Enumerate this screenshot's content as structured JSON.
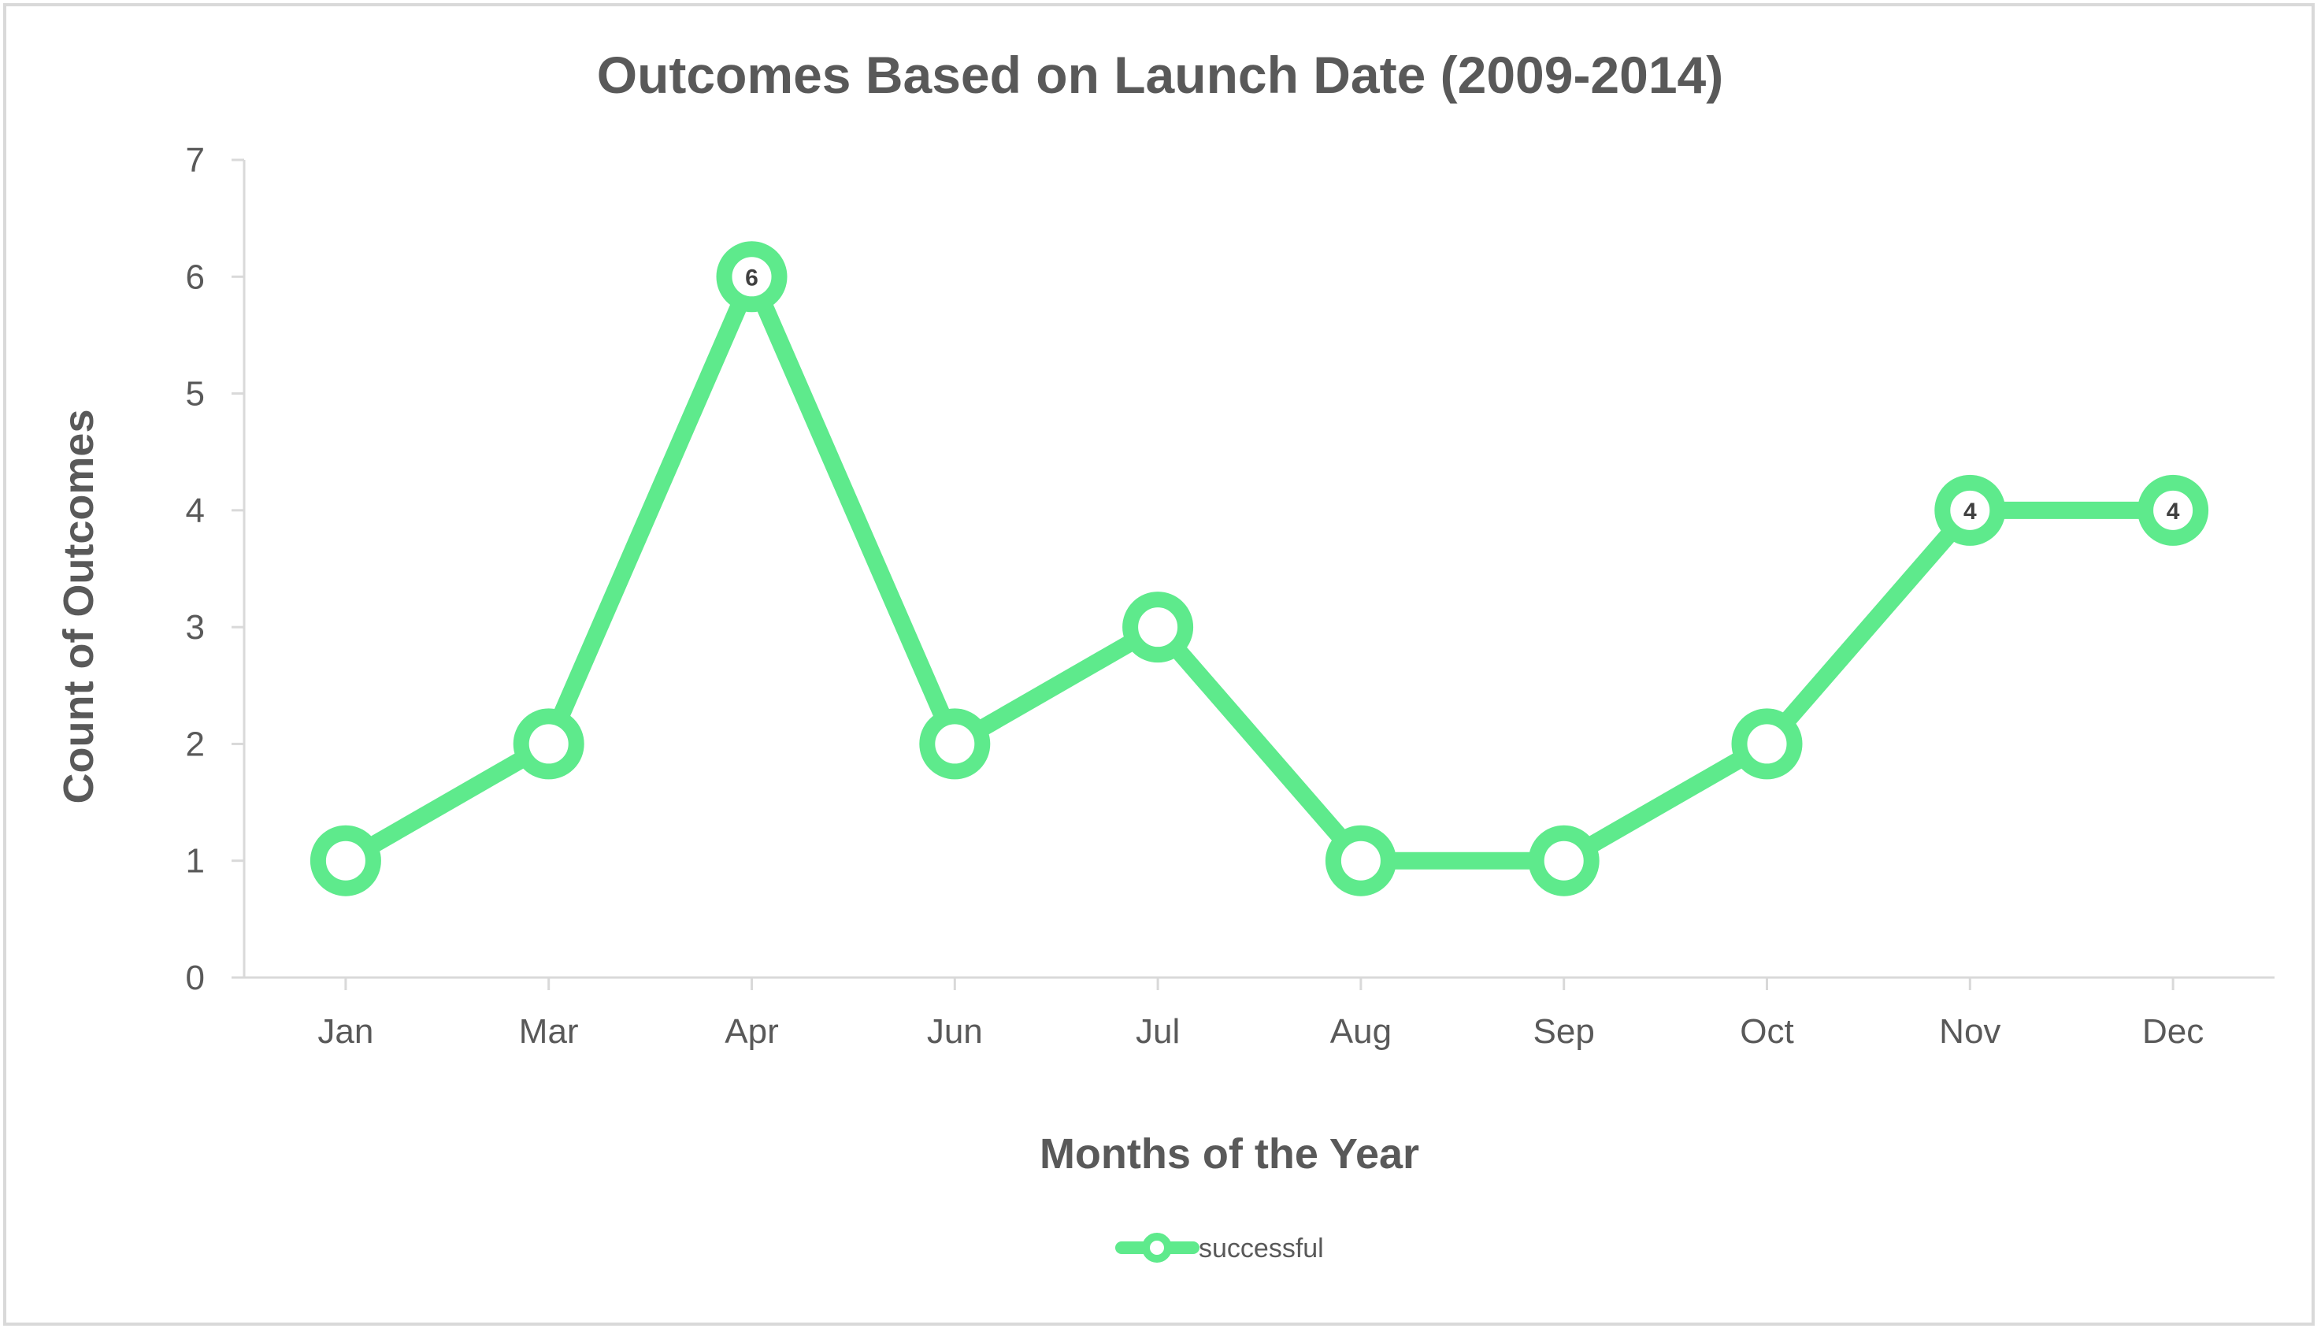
{
  "chart_data": {
    "type": "line",
    "title": "Outcomes Based on Launch Date (2009-2014)",
    "xlabel": "Months of the Year",
    "ylabel": "Count  of Outcomes",
    "categories": [
      "Jan",
      "Mar",
      "Apr",
      "Jun",
      "Jul",
      "Aug",
      "Sep",
      "Oct",
      "Nov",
      "Dec"
    ],
    "series": [
      {
        "name": "successful",
        "color": "#5EEA8C",
        "values": [
          1,
          2,
          6,
          2,
          3,
          1,
          1,
          2,
          4,
          4
        ]
      }
    ],
    "data_labels": [
      {
        "category": "Apr",
        "text": "6"
      },
      {
        "category": "Nov",
        "text": "4"
      },
      {
        "category": "Dec",
        "text": "4"
      }
    ],
    "ylim": [
      0,
      7
    ],
    "yticks": [
      "0",
      "1",
      "2",
      "3",
      "4",
      "5",
      "6",
      "7"
    ],
    "grid": false,
    "legend_position": "bottom",
    "axis_color": "#d9d9d9"
  }
}
